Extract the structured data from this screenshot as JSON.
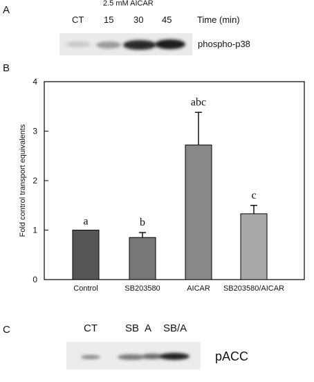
{
  "panel_a": {
    "letter": "A",
    "treatment_label": "2.5 mM AICAR",
    "lanes": [
      "CT",
      "15",
      "30",
      "45"
    ],
    "time_label": "Time (min)",
    "blot_label": "phospho-p38"
  },
  "panel_b": {
    "letter": "B"
  },
  "panel_c": {
    "letter": "C",
    "lanes": [
      "CT",
      "SB",
      "A",
      "SB/A"
    ],
    "blot_label": "pACC"
  },
  "chart_data": {
    "type": "bar",
    "categories": [
      "Control",
      "SB203580",
      "AICAR",
      "SB203580/AICAR"
    ],
    "values": [
      1.0,
      0.85,
      2.72,
      1.33
    ],
    "errors": [
      0.0,
      0.1,
      0.66,
      0.17
    ],
    "annotations": [
      "a",
      "b",
      "abc",
      "c"
    ],
    "bar_colors": [
      "#555555",
      "#777777",
      "#888888",
      "#a8a8a8"
    ],
    "title": "",
    "xlabel": "",
    "ylabel": "Fold control transport equivalents",
    "ylim": [
      0,
      4
    ],
    "yticks": [
      0,
      1,
      2,
      3,
      4
    ],
    "grid": false
  }
}
